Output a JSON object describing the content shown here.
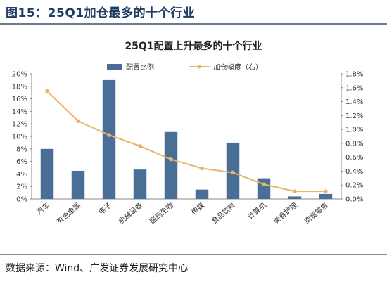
{
  "figure": {
    "title": "图15：25Q1加仓最多的十个行业",
    "source": "数据来源：Wind、广发证券发展研究中心"
  },
  "chart_data": {
    "type": "bar+line",
    "title": "25Q1配置上升最多的十个行业",
    "categories": [
      "汽车",
      "有色金属",
      "电子",
      "机械设备",
      "医药生物",
      "传媒",
      "食品饮料",
      "计算机",
      "美容护理",
      "商贸零售"
    ],
    "series": [
      {
        "name": "配置比例",
        "type": "bar",
        "axis": "left",
        "color": "#4a6f96",
        "values": [
          8.0,
          4.5,
          19.0,
          4.7,
          10.7,
          1.5,
          9.0,
          3.3,
          0.4,
          0.8
        ]
      },
      {
        "name": "加仓幅度（右）",
        "type": "line",
        "axis": "right",
        "color": "#e8b46a",
        "values": [
          1.55,
          1.12,
          0.92,
          0.76,
          0.57,
          0.44,
          0.38,
          0.21,
          0.11,
          0.11
        ]
      }
    ],
    "y_left": {
      "min": 0,
      "max": 20,
      "step": 2,
      "unit": "%"
    },
    "y_right": {
      "min": 0,
      "max": 1.8,
      "step": 0.2,
      "unit": "%"
    },
    "legend_position": "top-center",
    "grid": false
  }
}
